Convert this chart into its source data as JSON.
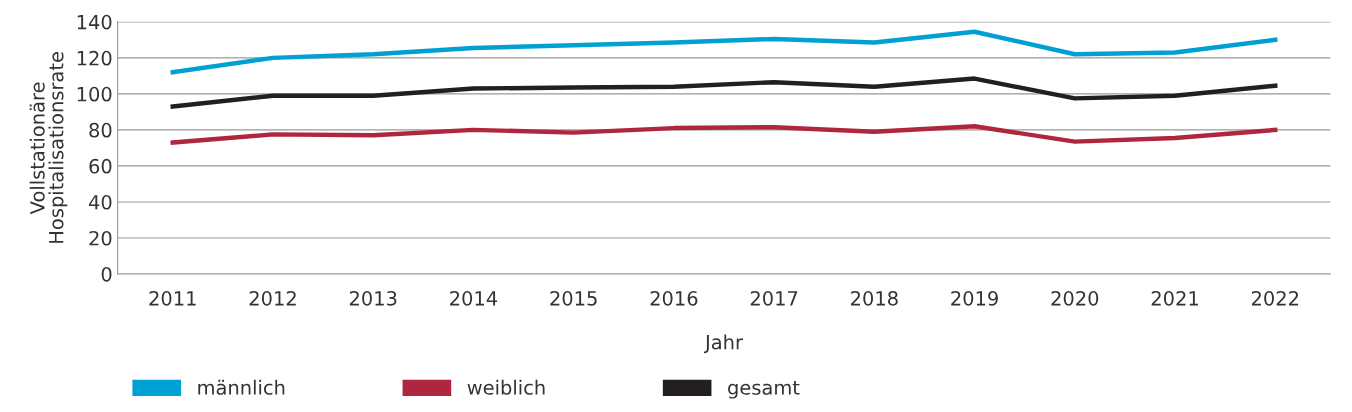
{
  "chart_data": {
    "type": "line",
    "xlabel": "Jahr",
    "ylabel": "Vollstationäre\nHospitalisationsrate",
    "categories": [
      "2011",
      "2012",
      "2013",
      "2014",
      "2015",
      "2016",
      "2017",
      "2018",
      "2019",
      "2020",
      "2021",
      "2022"
    ],
    "series": [
      {
        "name": "männlich",
        "color": "#00a0d2",
        "values": [
          112,
          120,
          122,
          125.5,
          127,
          128.5,
          130.5,
          128.5,
          134.5,
          122,
          123,
          130
        ]
      },
      {
        "name": "weiblich",
        "color": "#b0263e",
        "values": [
          73,
          77.5,
          77,
          80,
          78.5,
          81,
          81.5,
          79,
          82,
          73.5,
          75.5,
          80
        ]
      },
      {
        "name": "gesamt",
        "color": "#231f20",
        "values": [
          93,
          99,
          99,
          103,
          103.5,
          104,
          106.5,
          104,
          108.5,
          97.5,
          99,
          104.5
        ]
      }
    ],
    "ylim": [
      0,
      140
    ],
    "yticks": [
      0,
      20,
      40,
      60,
      80,
      100,
      120,
      140
    ],
    "grid": "y",
    "legend": "bottom",
    "marker": "none",
    "line_style": "solid"
  }
}
